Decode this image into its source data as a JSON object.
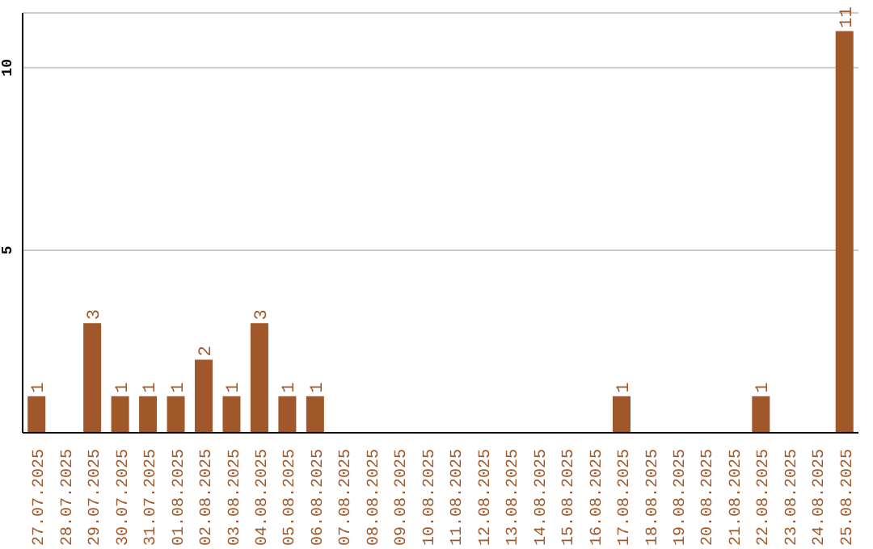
{
  "chart_data": {
    "type": "bar",
    "categories": [
      "27.07.2025",
      "28.07.2025",
      "29.07.2025",
      "30.07.2025",
      "31.07.2025",
      "01.08.2025",
      "02.08.2025",
      "03.08.2025",
      "04.08.2025",
      "05.08.2025",
      "06.08.2025",
      "07.08.2025",
      "08.08.2025",
      "09.08.2025",
      "10.08.2025",
      "11.08.2025",
      "12.08.2025",
      "13.08.2025",
      "14.08.2025",
      "15.08.2025",
      "16.08.2025",
      "17.08.2025",
      "18.08.2025",
      "19.08.2025",
      "20.08.2025",
      "21.08.2025",
      "22.08.2025",
      "23.08.2025",
      "24.08.2025",
      "25.08.2025"
    ],
    "values": [
      1,
      0,
      3,
      1,
      1,
      1,
      2,
      1,
      3,
      1,
      1,
      0,
      0,
      0,
      0,
      0,
      0,
      0,
      0,
      0,
      0,
      1,
      0,
      0,
      0,
      0,
      1,
      0,
      0,
      11
    ],
    "value_labels": [
      "1",
      null,
      "3",
      "1",
      "1",
      "1",
      "2",
      "1",
      "3",
      "1",
      "1",
      null,
      null,
      null,
      null,
      null,
      null,
      null,
      null,
      null,
      null,
      "1",
      null,
      null,
      null,
      null,
      "1",
      null,
      null,
      "11"
    ],
    "color": "#a0582a",
    "ylim": [
      0,
      11.5
    ],
    "yticks": [
      5,
      10
    ],
    "grid": "y",
    "legend": false
  }
}
